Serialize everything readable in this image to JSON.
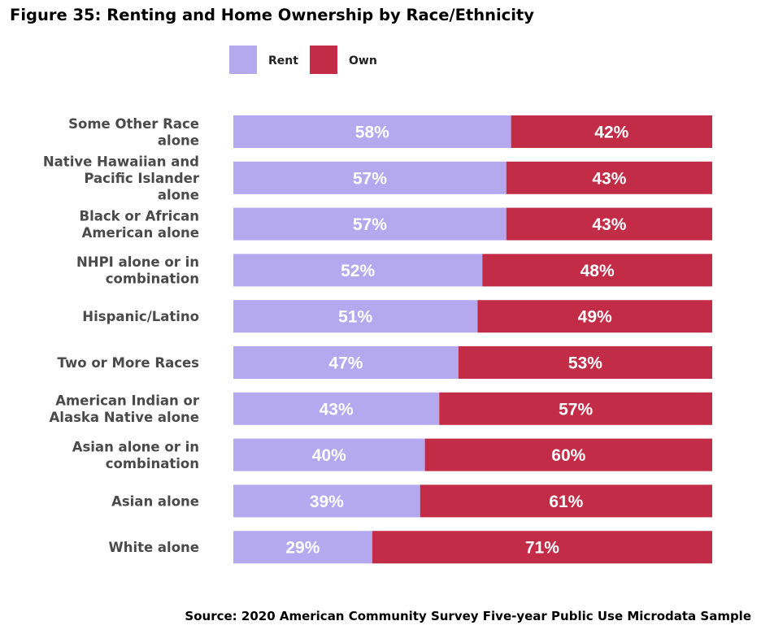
{
  "chart_data": {
    "type": "bar",
    "orientation": "horizontal",
    "stacked": true,
    "title": "Figure 35: Renting and Home Ownership by Race/Ethnicity",
    "source": "Source: 2020 American Community Survey Five-year Public Use Microdata Sample",
    "categories": [
      [
        "Some Other Race",
        "alone"
      ],
      [
        "Native Hawaiian and",
        "Pacific Islander",
        "alone"
      ],
      [
        "Black or African",
        "American alone"
      ],
      [
        "NHPI alone or in",
        "combination"
      ],
      [
        "Hispanic/Latino"
      ],
      [
        "Two or More Races"
      ],
      [
        "American Indian or",
        "Alaska Native alone"
      ],
      [
        "Asian alone or in",
        "combination"
      ],
      [
        "Asian alone"
      ],
      [
        "White alone"
      ]
    ],
    "series": [
      {
        "name": "Rent",
        "color": "#b4a9ef",
        "values": [
          58,
          57,
          57,
          52,
          51,
          47,
          43,
          40,
          39,
          29
        ],
        "labels": [
          "58%",
          "57%",
          "57%",
          "52%",
          "51%",
          "47%",
          "43%",
          "40%",
          "39%",
          "29%"
        ]
      },
      {
        "name": "Own",
        "color": "#c22c46",
        "values": [
          42,
          43,
          43,
          48,
          49,
          53,
          57,
          60,
          61,
          71
        ],
        "labels": [
          "42%",
          "43%",
          "43%",
          "48%",
          "49%",
          "53%",
          "57%",
          "60%",
          "61%",
          "71%"
        ]
      }
    ],
    "xlim": [
      0,
      100
    ],
    "grid": false,
    "legend": "top"
  }
}
